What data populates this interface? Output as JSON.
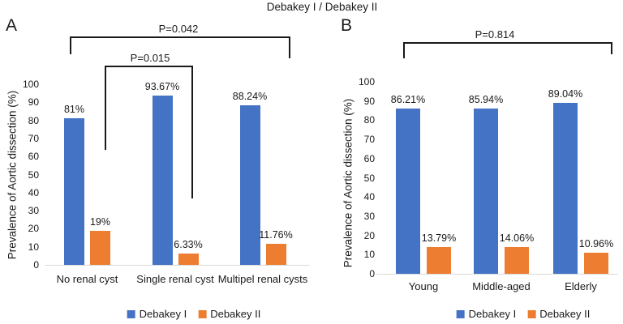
{
  "figure_title": "Debakey I / Debakey II",
  "colors": {
    "debakey_i": "#4472C4",
    "debakey_ii": "#ED7D31",
    "axis_line": "#D9D9D9",
    "text": "#1A1A1A"
  },
  "chart_data": [
    {
      "id": "A",
      "panel_label": "A",
      "type": "bar",
      "title": "",
      "xlabel": "",
      "ylabel": "Prevalence of Aortic dissection (%)",
      "ylim": [
        0,
        100
      ],
      "ytick_step": 10,
      "grid": false,
      "legend_position": "bottom",
      "categories": [
        "No renal cyst",
        "Single renal cyst",
        "Multipel renal cysts"
      ],
      "series": [
        {
          "name": "Debakey I",
          "color": "#4472C4",
          "values": [
            81,
            93.67,
            88.24
          ],
          "value_labels": [
            "81%",
            "93.67%",
            "88.24%"
          ]
        },
        {
          "name": "Debakey II",
          "color": "#ED7D31",
          "values": [
            19,
            6.33,
            11.76
          ],
          "value_labels": [
            "19%",
            "6.33%",
            "11.76%"
          ]
        }
      ],
      "significance_brackets": [
        {
          "label": "P=0.042",
          "from": "No renal cyst",
          "to": "Multipel renal cysts"
        },
        {
          "label": "P=0.015",
          "from": "No renal cyst",
          "to": "Single renal cyst"
        }
      ]
    },
    {
      "id": "B",
      "panel_label": "B",
      "type": "bar",
      "title": "",
      "xlabel": "",
      "ylabel": "Prevalence of Aortic dissection (%)",
      "ylim": [
        0,
        100
      ],
      "ytick_step": 10,
      "grid": false,
      "legend_position": "bottom",
      "categories": [
        "Young",
        "Middle-aged",
        "Elderly"
      ],
      "series": [
        {
          "name": "Debakey I",
          "color": "#4472C4",
          "values": [
            86.21,
            85.94,
            89.04
          ],
          "value_labels": [
            "86.21%",
            "85.94%",
            "89.04%"
          ]
        },
        {
          "name": "Debakey II",
          "color": "#ED7D31",
          "values": [
            13.79,
            14.06,
            10.96
          ],
          "value_labels": [
            "13.79%",
            "14.06%",
            "10.96%"
          ]
        }
      ],
      "significance_brackets": [
        {
          "label": "P=0.814",
          "from": "Young",
          "to": "Elderly"
        }
      ]
    }
  ]
}
